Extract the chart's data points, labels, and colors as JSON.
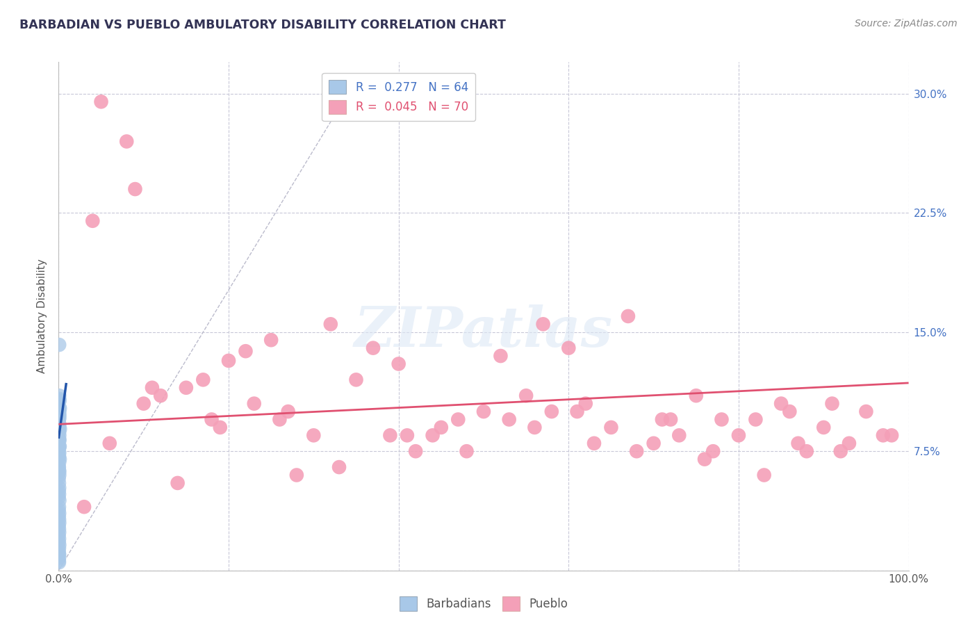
{
  "title": "BARBADIAN VS PUEBLO AMBULATORY DISABILITY CORRELATION CHART",
  "source": "Source: ZipAtlas.com",
  "xlabel": "",
  "ylabel": "Ambulatory Disability",
  "xlim": [
    0.0,
    1.0
  ],
  "ylim": [
    0.0,
    0.32
  ],
  "xticks": [
    0.0,
    0.2,
    0.4,
    0.6,
    0.8,
    1.0
  ],
  "xtick_labels": [
    "0.0%",
    "",
    "",
    "",
    "",
    "100.0%"
  ],
  "yticks": [
    0.0,
    0.075,
    0.15,
    0.225,
    0.3
  ],
  "ytick_labels": [
    "",
    "7.5%",
    "15.0%",
    "22.5%",
    "30.0%"
  ],
  "legend_r1": "R =  0.277",
  "legend_n1": "N = 64",
  "legend_r2": "R =  0.045",
  "legend_n2": "N = 70",
  "blue_color": "#a8c8e8",
  "pink_color": "#f4a0b8",
  "blue_line_color": "#2255aa",
  "pink_line_color": "#e05070",
  "grid_color": "#c8c8d8",
  "background_color": "#ffffff",
  "barbadians_x": [
    0.0005,
    0.0008,
    0.0003,
    0.0006,
    0.0004,
    0.0007,
    0.0002,
    0.0009,
    0.0005,
    0.0006,
    0.0004,
    0.0008,
    0.0003,
    0.0005,
    0.0007,
    0.0004,
    0.0006,
    0.0008,
    0.0003,
    0.0005,
    0.0007,
    0.0004,
    0.0006,
    0.0002,
    0.0009,
    0.0005,
    0.0003,
    0.0007,
    0.0004,
    0.0006,
    0.0008,
    0.0003,
    0.0005,
    0.0007,
    0.0002,
    0.0006,
    0.0004,
    0.0008,
    0.0005,
    0.0003,
    0.0007,
    0.0006,
    0.0004,
    0.0002,
    0.0009,
    0.0005,
    0.0007,
    0.0003,
    0.0006,
    0.0008,
    0.0012,
    0.0015,
    0.001,
    0.0009,
    0.0011,
    0.0013,
    0.0008,
    0.0014,
    0.0007,
    0.0016,
    0.0004,
    0.0003,
    0.0002,
    0.0001
  ],
  "barbadians_y": [
    0.005,
    0.062,
    0.01,
    0.09,
    0.095,
    0.1,
    0.098,
    0.092,
    0.088,
    0.087,
    0.082,
    0.078,
    0.075,
    0.072,
    0.068,
    0.065,
    0.063,
    0.06,
    0.058,
    0.055,
    0.052,
    0.05,
    0.048,
    0.046,
    0.044,
    0.04,
    0.038,
    0.036,
    0.034,
    0.032,
    0.03,
    0.028,
    0.026,
    0.024,
    0.022,
    0.02,
    0.018,
    0.016,
    0.014,
    0.012,
    0.01,
    0.008,
    0.006,
    0.093,
    0.096,
    0.1,
    0.103,
    0.105,
    0.108,
    0.11,
    0.107,
    0.102,
    0.098,
    0.085,
    0.082,
    0.078,
    0.074,
    0.07,
    0.142,
    0.089,
    0.083,
    0.077,
    0.071,
    0.065
  ],
  "pueblo_x": [
    0.04,
    0.08,
    0.09,
    0.1,
    0.12,
    0.15,
    0.17,
    0.18,
    0.2,
    0.22,
    0.25,
    0.27,
    0.3,
    0.32,
    0.35,
    0.37,
    0.4,
    0.42,
    0.45,
    0.47,
    0.5,
    0.52,
    0.55,
    0.57,
    0.6,
    0.62,
    0.65,
    0.67,
    0.7,
    0.72,
    0.75,
    0.77,
    0.8,
    0.82,
    0.85,
    0.87,
    0.9,
    0.92,
    0.95,
    0.97,
    0.06,
    0.11,
    0.19,
    0.26,
    0.33,
    0.41,
    0.48,
    0.53,
    0.58,
    0.63,
    0.68,
    0.73,
    0.78,
    0.83,
    0.88,
    0.93,
    0.98,
    0.03,
    0.14,
    0.28,
    0.44,
    0.61,
    0.76,
    0.91,
    0.05,
    0.23,
    0.39,
    0.56,
    0.71,
    0.86
  ],
  "pueblo_y": [
    0.22,
    0.27,
    0.24,
    0.105,
    0.11,
    0.115,
    0.12,
    0.095,
    0.132,
    0.138,
    0.145,
    0.1,
    0.085,
    0.155,
    0.12,
    0.14,
    0.13,
    0.075,
    0.09,
    0.095,
    0.1,
    0.135,
    0.11,
    0.155,
    0.14,
    0.105,
    0.09,
    0.16,
    0.08,
    0.095,
    0.11,
    0.075,
    0.085,
    0.095,
    0.105,
    0.08,
    0.09,
    0.075,
    0.1,
    0.085,
    0.08,
    0.115,
    0.09,
    0.095,
    0.065,
    0.085,
    0.075,
    0.095,
    0.1,
    0.08,
    0.075,
    0.085,
    0.095,
    0.06,
    0.075,
    0.08,
    0.085,
    0.04,
    0.055,
    0.06,
    0.085,
    0.1,
    0.07,
    0.105,
    0.295,
    0.105,
    0.085,
    0.09,
    0.095,
    0.1
  ],
  "blue_trendline_x": [
    0.0,
    0.009
  ],
  "blue_trendline_y": [
    0.083,
    0.118
  ],
  "pink_trendline_x": [
    0.0,
    1.0
  ],
  "pink_trendline_y": [
    0.092,
    0.118
  ],
  "ref_line_x": [
    0.0,
    0.34
  ],
  "ref_line_y": [
    0.0,
    0.3
  ]
}
